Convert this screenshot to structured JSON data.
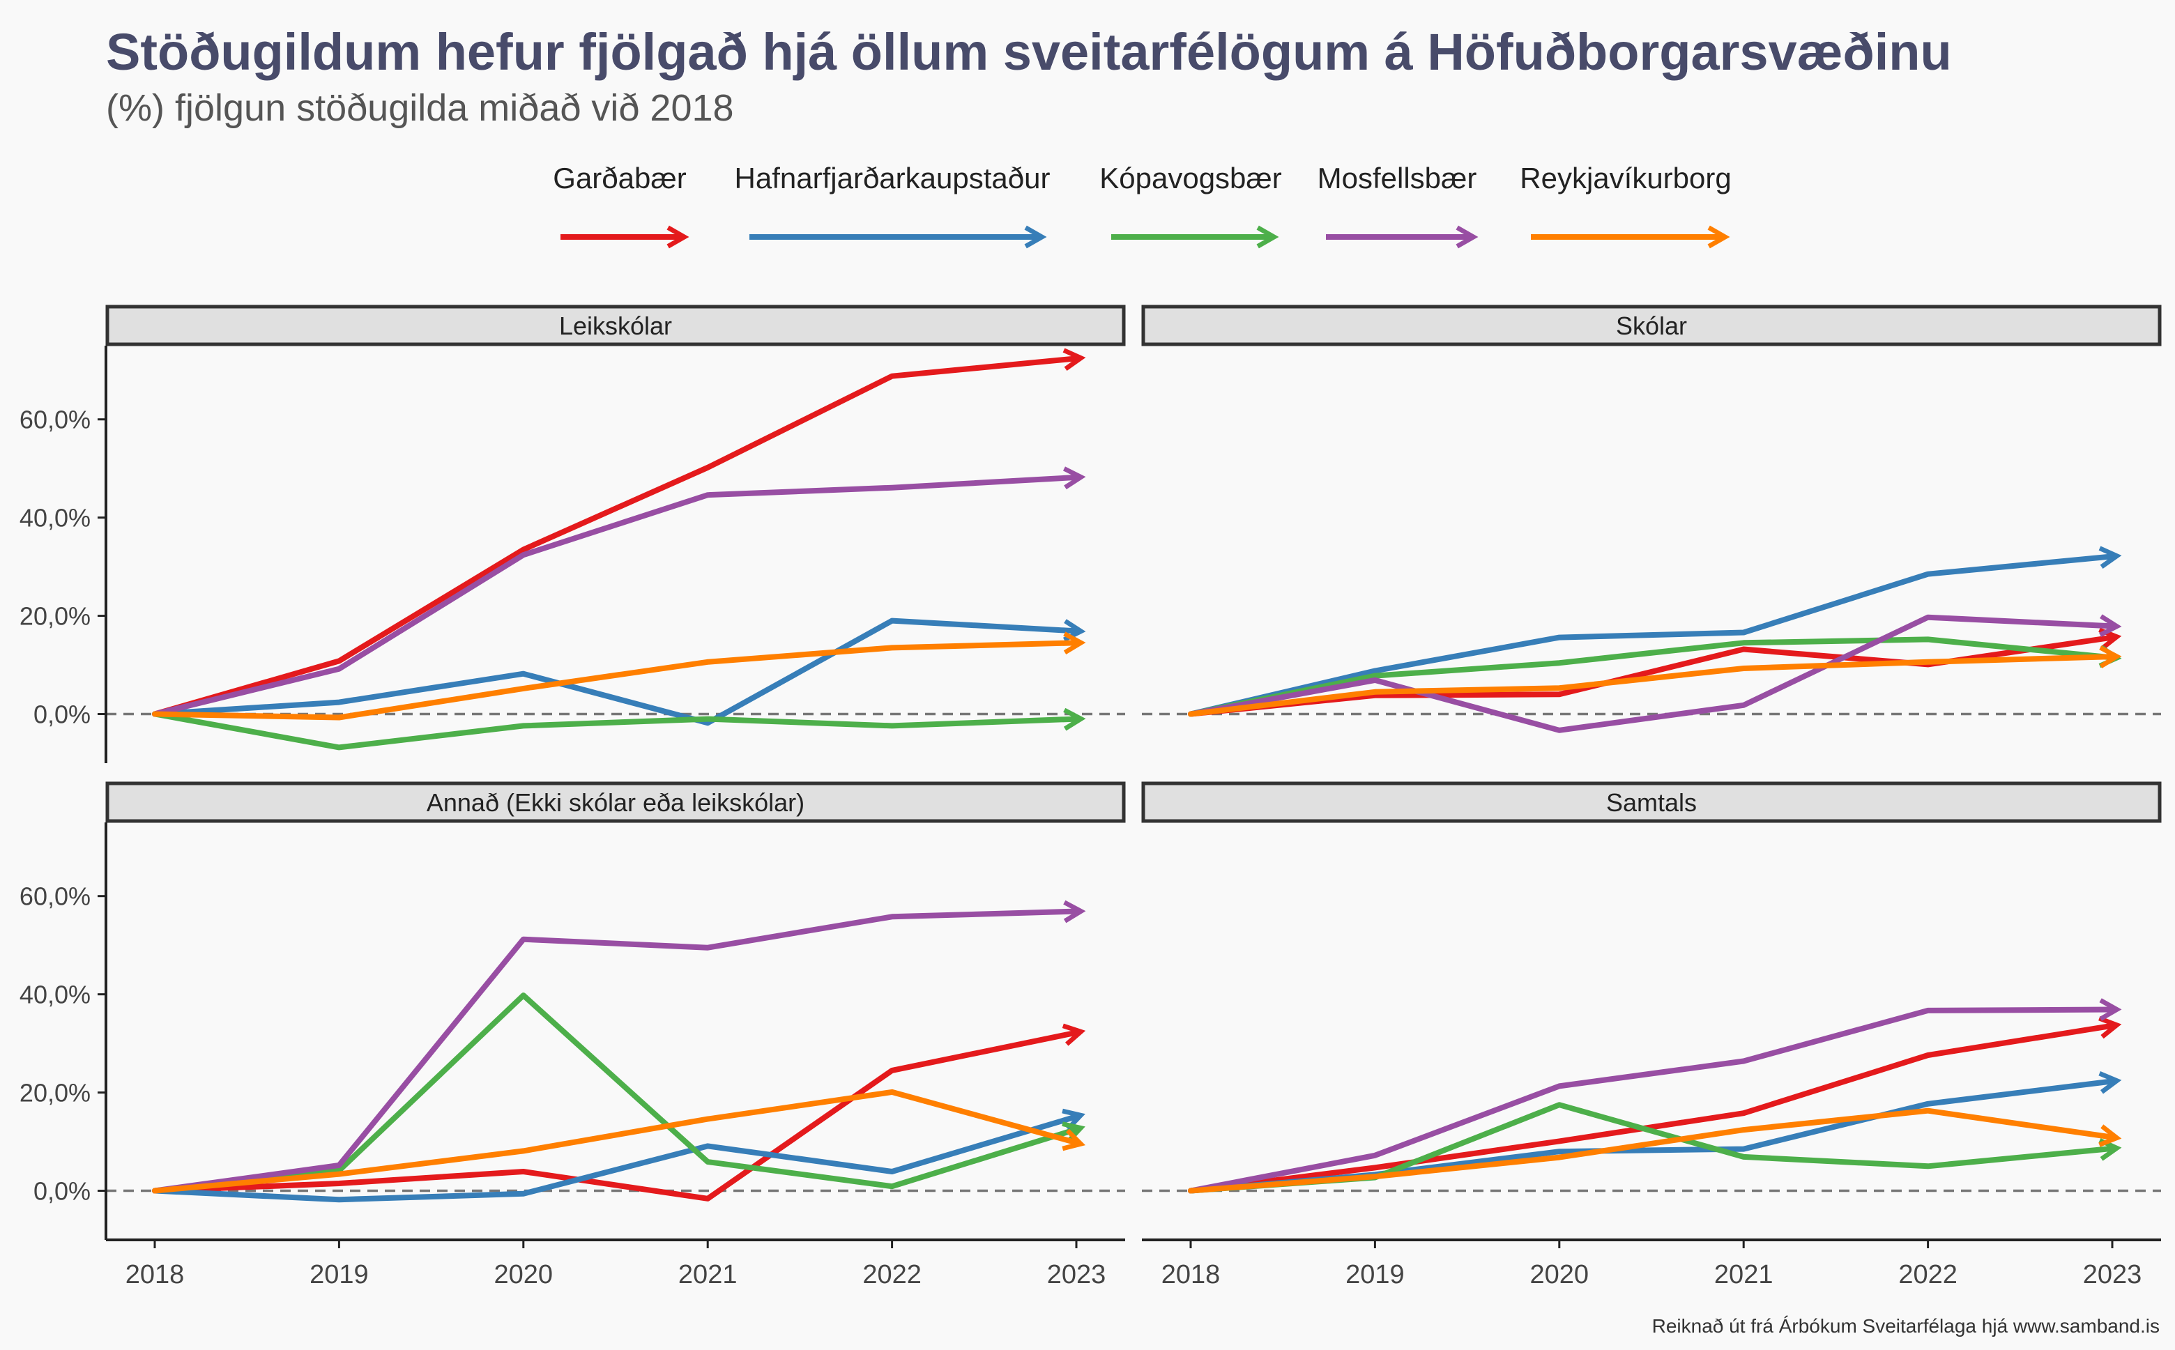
{
  "title": "Stöðugildum hefur fjölgað hjá öllum sveitarfélögum á Höfuðborgarsvæðinu",
  "subtitle": "(%) fjölgun stöðugilda miðað við 2018",
  "caption": "Reiknað út frá Árbókum Sveitarfélaga hjá www.samband.is",
  "colors": {
    "Garðabær": "#e41a1c",
    "Hafnarfjarðarkaupstaður": "#377eb8",
    "Kópavogsbær": "#4daf4a",
    "Mosfellsbær": "#984ea3",
    "Reykjavíkurborg": "#ff7f00"
  },
  "chart_data": {
    "type": "line",
    "x": [
      2018,
      2019,
      2020,
      2021,
      2022,
      2023
    ],
    "ylim": [
      -10,
      75
    ],
    "yticks": [
      0,
      20,
      40,
      60
    ],
    "ytick_labels": [
      "0,0%",
      "20,0%",
      "40,0%",
      "60,0%"
    ],
    "legend_position": "top",
    "legend": [
      "Garðabær",
      "Hafnarfjarðarkaupstaður",
      "Kópavogsbær",
      "Mosfellsbær",
      "Reykjavíkurborg"
    ],
    "reference_line": 0,
    "panels": [
      {
        "title": "Leikskólar",
        "series": [
          {
            "name": "Garðabær",
            "values": [
              0,
              10.8,
              33.5,
              50.2,
              68.8,
              72.4
            ]
          },
          {
            "name": "Hafnarfjarðarkaupstaður",
            "values": [
              0,
              2.4,
              8.2,
              -1.8,
              19.0,
              16.9
            ]
          },
          {
            "name": "Kópavogsbær",
            "values": [
              0,
              -6.8,
              -2.4,
              -1.0,
              -2.4,
              -1.0
            ]
          },
          {
            "name": "Mosfellsbær",
            "values": [
              0,
              9.2,
              32.4,
              44.6,
              46.1,
              48.2
            ]
          },
          {
            "name": "Reykjavíkurborg",
            "values": [
              0,
              -0.7,
              5.2,
              10.6,
              13.5,
              14.5
            ]
          }
        ]
      },
      {
        "title": "Skólar",
        "series": [
          {
            "name": "Garðabær",
            "values": [
              0,
              3.8,
              4.0,
              13.2,
              10.1,
              15.6
            ]
          },
          {
            "name": "Hafnarfjarðarkaupstaður",
            "values": [
              0,
              8.8,
              15.6,
              16.6,
              28.5,
              32.1
            ]
          },
          {
            "name": "Kópavogsbær",
            "values": [
              0,
              7.8,
              10.4,
              14.5,
              15.2,
              11.5
            ]
          },
          {
            "name": "Mosfellsbær",
            "values": [
              0,
              6.9,
              -3.3,
              1.8,
              19.7,
              17.9
            ]
          },
          {
            "name": "Reykjavíkurborg",
            "values": [
              0,
              4.5,
              5.3,
              9.3,
              10.6,
              11.7
            ]
          }
        ]
      },
      {
        "title": "Annað (Ekki skólar eða leikskólar)",
        "series": [
          {
            "name": "Garðabær",
            "values": [
              0,
              1.5,
              3.9,
              -1.6,
              24.5,
              32.2
            ]
          },
          {
            "name": "Hafnarfjarðarkaupstaður",
            "values": [
              0,
              -1.8,
              -0.6,
              9.1,
              3.9,
              15.1
            ]
          },
          {
            "name": "Kópavogsbær",
            "values": [
              0,
              4.1,
              39.8,
              5.9,
              0.9,
              12.5
            ]
          },
          {
            "name": "Mosfellsbær",
            "values": [
              0,
              5.2,
              51.2,
              49.5,
              55.8,
              56.9
            ]
          },
          {
            "name": "Reykjavíkurborg",
            "values": [
              0,
              3.4,
              8.1,
              14.6,
              20.1,
              9.8
            ]
          }
        ]
      },
      {
        "title": "Samtals",
        "series": [
          {
            "name": "Garðabær",
            "values": [
              0,
              4.7,
              10.1,
              15.8,
              27.6,
              33.6
            ]
          },
          {
            "name": "Hafnarfjarðarkaupstaður",
            "values": [
              0,
              3.3,
              8.0,
              8.5,
              17.7,
              22.3
            ]
          },
          {
            "name": "Kópavogsbær",
            "values": [
              0,
              2.7,
              17.5,
              6.9,
              5.0,
              8.6
            ]
          },
          {
            "name": "Mosfellsbær",
            "values": [
              0,
              7.2,
              21.3,
              26.4,
              36.7,
              36.9
            ]
          },
          {
            "name": "Reykjavíkurborg",
            "values": [
              0,
              2.9,
              6.8,
              12.4,
              16.3,
              10.9
            ]
          }
        ]
      }
    ]
  }
}
